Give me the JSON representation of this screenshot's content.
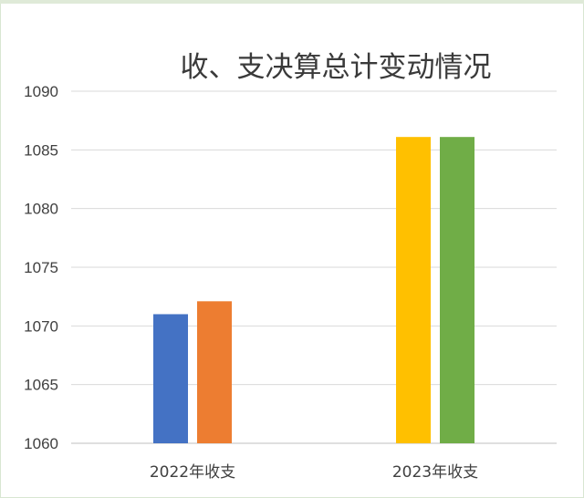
{
  "chart_data": {
    "type": "bar",
    "title": "收、支决算总计变动情况",
    "categories": [
      "2022年收支",
      "2023年收支"
    ],
    "series": [
      {
        "values": [
          1071.0,
          null
        ],
        "color": "#4472c4"
      },
      {
        "values": [
          1072.1,
          null
        ],
        "color": "#ed7d31"
      },
      {
        "values": [
          null,
          1086.1
        ],
        "color": "#ffc000"
      },
      {
        "values": [
          null,
          1086.1
        ],
        "color": "#70ad47"
      }
    ],
    "ylim": [
      1060,
      1090
    ],
    "yticks": [
      "1060",
      "1065",
      "1070",
      "1075",
      "1080",
      "1085",
      "1090"
    ],
    "grid": true,
    "legend": "none"
  }
}
